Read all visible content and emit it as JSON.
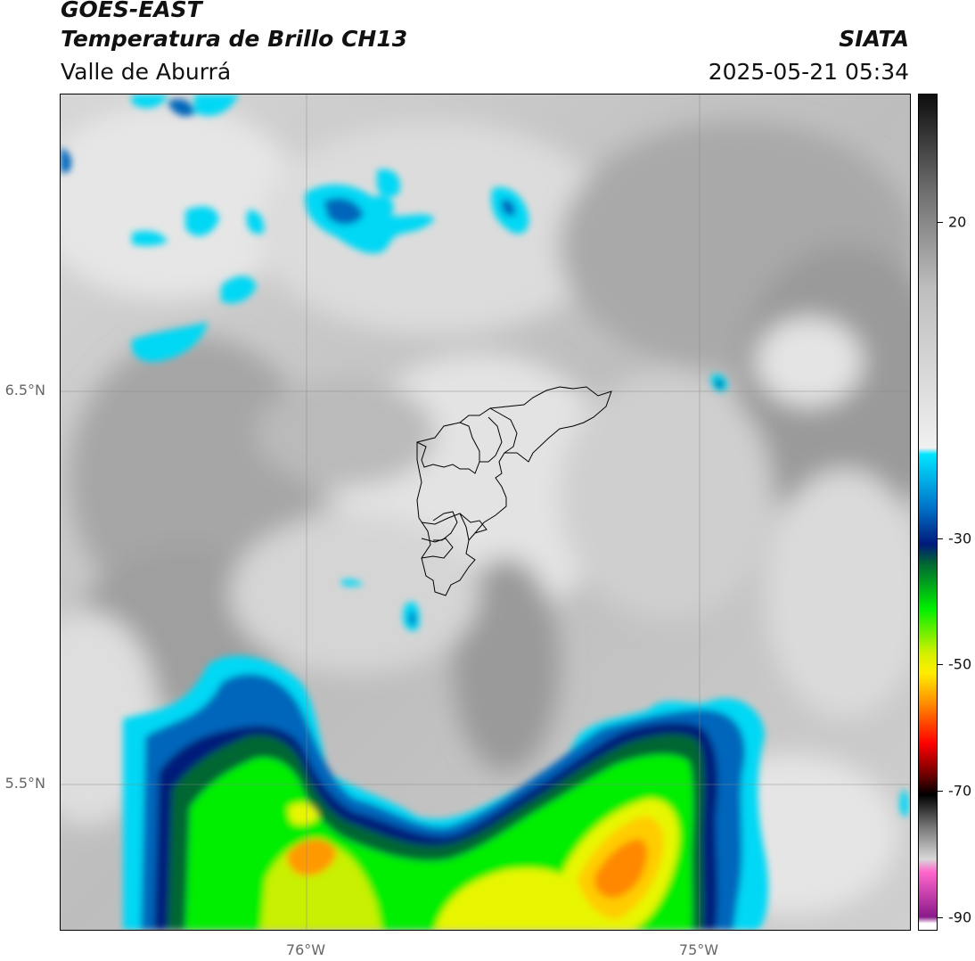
{
  "header": {
    "title_line1": "GOES-EAST",
    "title_line2": "Temperatura de Brillo CH13",
    "subtitle": "Valle de Aburrá",
    "organization": "SIATA",
    "timestamp": "2025-05-21 05:34"
  },
  "axes": {
    "lat_labels": [
      "6.5°N",
      "5.5°N"
    ],
    "lon_labels": [
      "76°W",
      "75°W"
    ]
  },
  "colorbar": {
    "tick_labels": [
      "20",
      "-30",
      "-50",
      "-70",
      "-90"
    ],
    "range": [
      -90,
      40
    ],
    "stops": [
      {
        "v": 40,
        "c": "#0d0d0d"
      },
      {
        "v": 25,
        "c": "#6e6e6e"
      },
      {
        "v": 10,
        "c": "#bdbdbd"
      },
      {
        "v": -15,
        "c": "#f0f0f0"
      },
      {
        "v": -16,
        "c": "#00e5ff"
      },
      {
        "v": -24,
        "c": "#0077cc"
      },
      {
        "v": -30,
        "c": "#001a7a"
      },
      {
        "v": -33,
        "c": "#006633"
      },
      {
        "v": -40,
        "c": "#00ee00"
      },
      {
        "v": -47,
        "c": "#d4f000"
      },
      {
        "v": -50,
        "c": "#ffee00"
      },
      {
        "v": -55,
        "c": "#ff8800"
      },
      {
        "v": -61,
        "c": "#ff0000"
      },
      {
        "v": -66,
        "c": "#6a0000"
      },
      {
        "v": -69,
        "c": "#000000"
      },
      {
        "v": -74,
        "c": "#777777"
      },
      {
        "v": -79,
        "c": "#d8d8d8"
      },
      {
        "v": -81,
        "c": "#ff66cc"
      },
      {
        "v": -88,
        "c": "#8a1a8a"
      },
      {
        "v": -89,
        "c": "#ffffff"
      }
    ]
  },
  "colors": {
    "cold_cloud_cyan": "#00e5ff",
    "cold_cloud_blue": "#0066bb",
    "deep_convection_green": "#00ee00",
    "deep_convection_yellow": "#e8f500",
    "deep_convection_orange": "#ff8800",
    "warm_surface_gray": "#a8a8a8"
  }
}
